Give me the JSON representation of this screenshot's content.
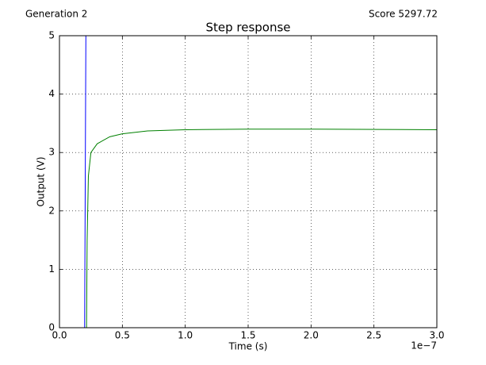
{
  "header": {
    "generation": "Generation 2",
    "score": "Score 5297.72"
  },
  "chart_data": {
    "type": "line",
    "title": "Step response",
    "x_label": "Time (s)",
    "y_label": "Output (V)",
    "x_offset_label": "1e−7",
    "xlim": [
      0,
      3.0
    ],
    "ylim": [
      0,
      5
    ],
    "xticks": [
      {
        "value": 0,
        "label": "0.0"
      },
      {
        "value": 0.5,
        "label": "0.5"
      },
      {
        "value": 1.0,
        "label": "1.0"
      },
      {
        "value": 1.5,
        "label": "1.5"
      },
      {
        "value": 2.0,
        "label": "2.0"
      },
      {
        "value": 2.5,
        "label": "2.5"
      },
      {
        "value": 3.0,
        "label": "3.0"
      }
    ],
    "yticks": [
      0,
      1,
      2,
      3,
      4,
      5
    ],
    "grid": true,
    "series": [
      {
        "color": "#0000ff",
        "x": [
          0,
          0.2,
          0.21,
          3.0
        ],
        "values": [
          0,
          0,
          5,
          5
        ]
      },
      {
        "color": "#008000",
        "x": [
          0,
          0.215,
          0.22,
          0.23,
          0.25,
          0.3,
          0.4,
          0.5,
          0.7,
          1.0,
          1.5,
          2.0,
          3.0
        ],
        "values": [
          0,
          0,
          1.5,
          2.6,
          3.0,
          3.15,
          3.27,
          3.32,
          3.37,
          3.39,
          3.4,
          3.4,
          3.39
        ]
      }
    ]
  }
}
